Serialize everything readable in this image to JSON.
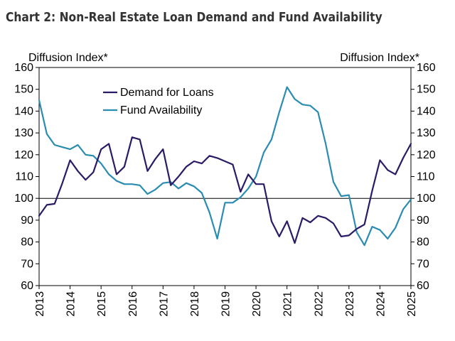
{
  "title": "Chart 2: Non-Real Estate Loan Demand and Fund Availability",
  "chart_data": {
    "type": "line",
    "title": "Chart 2: Non-Real Estate Loan Demand and Fund Availability",
    "ylabel_left": "Diffusion Index*",
    "ylabel_right": "Diffusion Index*",
    "ylim": [
      60,
      160
    ],
    "yticks": [
      60,
      70,
      80,
      90,
      100,
      110,
      120,
      130,
      140,
      150,
      160
    ],
    "reference_line": 100,
    "xlim": [
      2013,
      2025
    ],
    "xticks": [
      "2013",
      "2014",
      "2015",
      "2016",
      "2017",
      "2018",
      "2019",
      "2020",
      "2021",
      "2022",
      "2023",
      "2024",
      "2025"
    ],
    "grid": false,
    "legend_position": "top-left",
    "x": [
      2013.0,
      2013.25,
      2013.5,
      2013.75,
      2014.0,
      2014.25,
      2014.5,
      2014.75,
      2015.0,
      2015.25,
      2015.5,
      2015.75,
      2016.0,
      2016.25,
      2016.5,
      2016.75,
      2017.0,
      2017.25,
      2017.5,
      2017.75,
      2018.0,
      2018.25,
      2018.5,
      2018.75,
      2019.0,
      2019.25,
      2019.5,
      2019.75,
      2020.0,
      2020.25,
      2020.5,
      2020.75,
      2021.0,
      2021.25,
      2021.5,
      2021.75,
      2022.0,
      2022.25,
      2022.5,
      2022.75,
      2023.0,
      2023.25,
      2023.5,
      2023.75,
      2024.0,
      2024.25,
      2024.5,
      2024.75,
      2025.0
    ],
    "series": [
      {
        "name": "Demand for Loans",
        "color": "#2b1a66",
        "values": [
          92,
          97,
          97.5,
          107,
          117.5,
          112.5,
          108.5,
          112,
          122.5,
          125,
          111,
          114.5,
          128,
          127,
          112.5,
          118,
          122.5,
          106,
          110,
          114.5,
          117,
          116,
          119.5,
          118.5,
          117,
          115.5,
          103,
          111,
          106.5,
          106.5,
          89.5,
          82.5,
          89.5,
          79.5,
          91,
          89,
          92,
          91,
          88.5,
          82.5,
          83,
          86,
          88,
          103.5,
          117.5,
          113,
          111,
          118.5,
          125
        ]
      },
      {
        "name": "Fund Availability",
        "color": "#2a8cb0",
        "values": [
          145,
          129.5,
          124.5,
          123.5,
          122.5,
          124.5,
          120,
          119.5,
          116,
          111,
          108,
          106.5,
          106.5,
          106,
          102,
          104,
          107,
          107.5,
          104.5,
          107,
          105.5,
          102.5,
          93.5,
          81.5,
          98,
          98,
          100.5,
          104.5,
          110,
          121,
          127,
          139.5,
          151,
          145.5,
          143,
          142.5,
          139.5,
          125,
          107.5,
          101,
          101.5,
          84.5,
          78.5,
          87,
          85.5,
          81.5,
          86.5,
          95,
          99.5
        ]
      }
    ]
  }
}
